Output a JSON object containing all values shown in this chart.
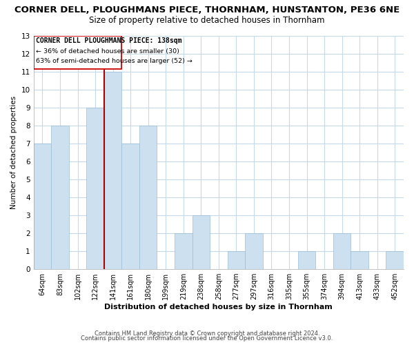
{
  "title": "CORNER DELL, PLOUGHMANS PIECE, THORNHAM, HUNSTANTON, PE36 6NE",
  "subtitle": "Size of property relative to detached houses in Thornham",
  "xlabel": "Distribution of detached houses by size in Thornham",
  "ylabel": "Number of detached properties",
  "bar_color": "#cce0f0",
  "bar_edge_color": "#9bbdd4",
  "bins": [
    "64sqm",
    "83sqm",
    "102sqm",
    "122sqm",
    "141sqm",
    "161sqm",
    "180sqm",
    "199sqm",
    "219sqm",
    "238sqm",
    "258sqm",
    "277sqm",
    "297sqm",
    "316sqm",
    "335sqm",
    "355sqm",
    "374sqm",
    "394sqm",
    "413sqm",
    "433sqm",
    "452sqm"
  ],
  "counts": [
    7,
    8,
    0,
    9,
    11,
    7,
    8,
    0,
    2,
    3,
    0,
    1,
    2,
    0,
    0,
    1,
    0,
    2,
    1,
    0,
    1
  ],
  "vline_bin_index": 4,
  "vline_color": "#aa0000",
  "annotation_title": "CORNER DELL PLOUGHMANS PIECE: 138sqm",
  "annotation_line1": "← 36% of detached houses are smaller (30)",
  "annotation_line2": "63% of semi-detached houses are larger (52) →",
  "ylim": [
    0,
    13
  ],
  "yticks": [
    0,
    1,
    2,
    3,
    4,
    5,
    6,
    7,
    8,
    9,
    10,
    11,
    12,
    13
  ],
  "footnote1": "Contains HM Land Registry data © Crown copyright and database right 2024.",
  "footnote2": "Contains public sector information licensed under the Open Government Licence v3.0.",
  "bg_color": "#ffffff",
  "grid_color": "#c5d9ea",
  "title_fontsize": 9.5,
  "subtitle_fontsize": 8.5
}
